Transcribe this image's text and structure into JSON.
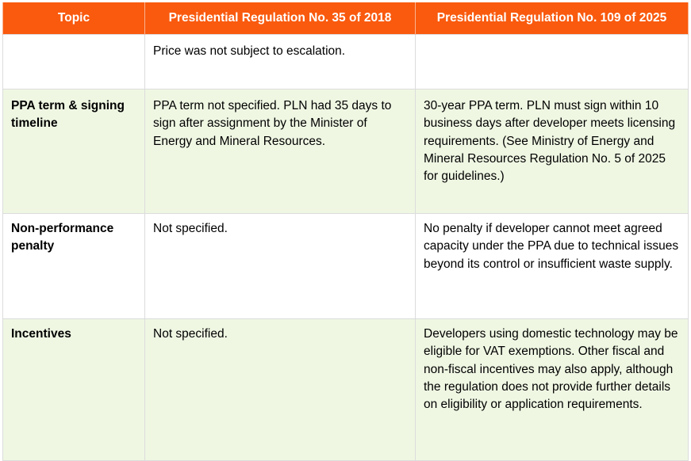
{
  "table": {
    "headers": [
      "Topic",
      "Presidential Regulation No. 35 of 2018",
      "Presidential Regulation No. 109 of 2025"
    ],
    "rows": [
      {
        "topic": "",
        "reg_2018": "Price was not subject to escalation.",
        "reg_2025": ""
      },
      {
        "topic": "PPA term & signing timeline",
        "reg_2018": "PPA term not specified. PLN had 35 days to sign after assignment by the Minister of Energy and Mineral Resources.",
        "reg_2025": "30-year PPA term. PLN must sign within 10 business days after developer meets licensing requirements. (See Ministry of Energy and Mineral Resources Regulation No. 5 of 2025 for guidelines.)"
      },
      {
        "topic": "Non-performance penalty",
        "reg_2018": "Not specified.",
        "reg_2025": "No penalty if developer cannot meet agreed capacity under the PPA due to technical issues beyond its control or insufficient waste supply."
      },
      {
        "topic": "Incentives",
        "reg_2018": "Not specified.",
        "reg_2025": "Developers using domestic technology may be eligible for VAT exemptions. Other fiscal and non-fiscal incentives may also apply, although the regulation does not provide further details on eligibility or application requirements."
      }
    ]
  },
  "colors": {
    "header_bg": "#f95a0e",
    "header_text": "#ffffff",
    "row_white": "#ffffff",
    "row_green": "#eff7e3",
    "grid_line": "#dcdcdc"
  }
}
